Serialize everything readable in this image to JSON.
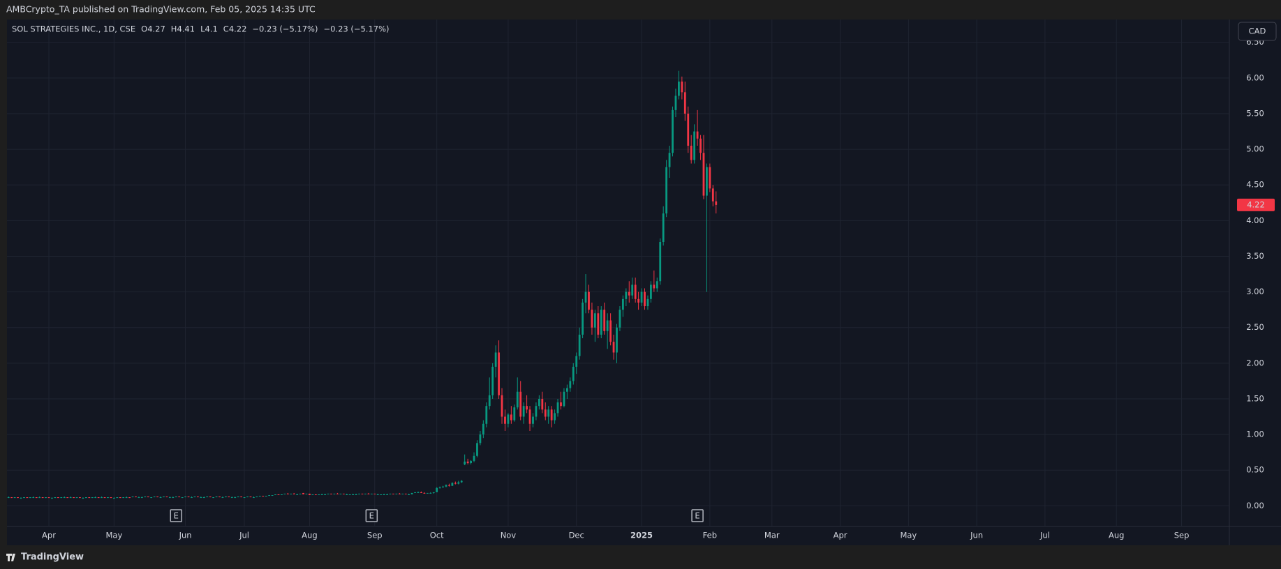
{
  "header": {
    "publisher": "AMBCrypto_TA published on TradingView.com, Feb 05, 2025 14:35 UTC"
  },
  "footer": {
    "brand": "TradingView"
  },
  "currency_button": "CAD",
  "chart_data": {
    "type": "candlestick",
    "title": "SOL STRATEGIES INC., 1D, CSE",
    "ohlc_labels": [
      "O",
      "H",
      "L",
      "C"
    ],
    "change_label": "−0.23 (−5.17%)",
    "up_color": "#089981",
    "down_color": "#f23645",
    "grid": true,
    "xlim": [
      -0.5,
      393.4
    ],
    "xticks": [
      {
        "value": 13,
        "label": "Apr"
      },
      {
        "value": 34,
        "label": "May"
      },
      {
        "value": 57,
        "label": "Jun"
      },
      {
        "value": 76,
        "label": "Jul"
      },
      {
        "value": 97,
        "label": "Aug"
      },
      {
        "value": 118,
        "label": "Sep"
      },
      {
        "value": 138,
        "label": "Oct"
      },
      {
        "value": 161,
        "label": "Nov"
      },
      {
        "value": 183,
        "label": "Dec"
      },
      {
        "value": 204,
        "label": "2025"
      },
      {
        "value": 226,
        "label": "Feb"
      },
      {
        "value": 246,
        "label": "Mar"
      },
      {
        "value": 268,
        "label": "Apr"
      },
      {
        "value": 290,
        "label": "May"
      },
      {
        "value": 312,
        "label": "Jun"
      },
      {
        "value": 334,
        "label": "Jul"
      },
      {
        "value": 357,
        "label": "Aug"
      },
      {
        "value": 378,
        "label": "Sep"
      }
    ],
    "ylim": [
      -0.29,
      6.82
    ],
    "yticks": [
      {
        "value": 0,
        "label": "0.00"
      },
      {
        "value": 0.5,
        "label": "0.50"
      },
      {
        "value": 1,
        "label": "1.00"
      },
      {
        "value": 1.5,
        "label": "1.50"
      },
      {
        "value": 2,
        "label": "2.00"
      },
      {
        "value": 2.5,
        "label": "2.50"
      },
      {
        "value": 3,
        "label": "3.00"
      },
      {
        "value": 3.5,
        "label": "3.50"
      },
      {
        "value": 4,
        "label": "4.00"
      },
      {
        "value": 4.5,
        "label": "4.50"
      },
      {
        "value": 5,
        "label": "5.00"
      },
      {
        "value": 5.5,
        "label": "5.50"
      },
      {
        "value": 6,
        "label": "6.00"
      },
      {
        "value": 6.5,
        "label": "6.50"
      }
    ],
    "events": [
      {
        "x": 54,
        "label": "E"
      },
      {
        "x": 117,
        "label": "E"
      },
      {
        "x": 222,
        "label": "E"
      }
    ],
    "ohlc": [
      [
        0.12,
        0.13,
        0.11,
        0.12
      ],
      [
        0.12,
        0.12,
        0.11,
        0.11
      ],
      [
        0.11,
        0.12,
        0.11,
        0.12
      ],
      [
        0.12,
        0.12,
        0.11,
        0.11
      ],
      [
        0.11,
        0.12,
        0.1,
        0.11
      ],
      [
        0.11,
        0.12,
        0.11,
        0.12
      ],
      [
        0.12,
        0.12,
        0.11,
        0.11
      ],
      [
        0.11,
        0.12,
        0.11,
        0.12
      ],
      [
        0.12,
        0.13,
        0.11,
        0.12
      ],
      [
        0.12,
        0.12,
        0.11,
        0.11
      ],
      [
        0.12,
        0.13,
        0.11,
        0.12
      ],
      [
        0.12,
        0.12,
        0.11,
        0.11
      ],
      [
        0.11,
        0.12,
        0.11,
        0.12
      ],
      [
        0.12,
        0.12,
        0.11,
        0.11
      ],
      [
        0.11,
        0.12,
        0.1,
        0.11
      ],
      [
        0.11,
        0.12,
        0.11,
        0.12
      ],
      [
        0.12,
        0.12,
        0.11,
        0.11
      ],
      [
        0.11,
        0.12,
        0.11,
        0.12
      ],
      [
        0.12,
        0.13,
        0.11,
        0.12
      ],
      [
        0.12,
        0.12,
        0.11,
        0.11
      ],
      [
        0.12,
        0.13,
        0.11,
        0.12
      ],
      [
        0.12,
        0.12,
        0.11,
        0.11
      ],
      [
        0.11,
        0.12,
        0.11,
        0.12
      ],
      [
        0.12,
        0.12,
        0.11,
        0.11
      ],
      [
        0.11,
        0.12,
        0.1,
        0.11
      ],
      [
        0.11,
        0.12,
        0.11,
        0.12
      ],
      [
        0.12,
        0.12,
        0.11,
        0.11
      ],
      [
        0.11,
        0.12,
        0.11,
        0.12
      ],
      [
        0.12,
        0.13,
        0.11,
        0.12
      ],
      [
        0.12,
        0.12,
        0.11,
        0.11
      ],
      [
        0.12,
        0.13,
        0.11,
        0.12
      ],
      [
        0.12,
        0.12,
        0.11,
        0.11
      ],
      [
        0.11,
        0.12,
        0.11,
        0.12
      ],
      [
        0.12,
        0.12,
        0.11,
        0.11
      ],
      [
        0.11,
        0.12,
        0.1,
        0.11
      ],
      [
        0.11,
        0.12,
        0.11,
        0.12
      ],
      [
        0.12,
        0.12,
        0.11,
        0.11
      ],
      [
        0.11,
        0.12,
        0.11,
        0.12
      ],
      [
        0.12,
        0.13,
        0.11,
        0.12
      ],
      [
        0.12,
        0.12,
        0.11,
        0.11
      ],
      [
        0.12,
        0.13,
        0.12,
        0.13
      ],
      [
        0.13,
        0.13,
        0.12,
        0.12
      ],
      [
        0.12,
        0.13,
        0.12,
        0.12
      ],
      [
        0.12,
        0.13,
        0.11,
        0.12
      ],
      [
        0.12,
        0.13,
        0.12,
        0.13
      ],
      [
        0.13,
        0.13,
        0.12,
        0.12
      ],
      [
        0.12,
        0.12,
        0.11,
        0.12
      ],
      [
        0.12,
        0.13,
        0.12,
        0.13
      ],
      [
        0.13,
        0.13,
        0.12,
        0.12
      ],
      [
        0.12,
        0.13,
        0.12,
        0.12
      ],
      [
        0.12,
        0.13,
        0.12,
        0.13
      ],
      [
        0.13,
        0.13,
        0.12,
        0.12
      ],
      [
        0.12,
        0.13,
        0.12,
        0.12
      ],
      [
        0.12,
        0.13,
        0.11,
        0.12
      ],
      [
        0.12,
        0.13,
        0.12,
        0.13
      ],
      [
        0.13,
        0.13,
        0.12,
        0.12
      ],
      [
        0.12,
        0.12,
        0.11,
        0.12
      ],
      [
        0.12,
        0.13,
        0.12,
        0.13
      ],
      [
        0.13,
        0.13,
        0.12,
        0.12
      ],
      [
        0.12,
        0.13,
        0.12,
        0.12
      ],
      [
        0.12,
        0.13,
        0.12,
        0.13
      ],
      [
        0.13,
        0.13,
        0.12,
        0.12
      ],
      [
        0.12,
        0.13,
        0.12,
        0.12
      ],
      [
        0.12,
        0.13,
        0.11,
        0.12
      ],
      [
        0.12,
        0.13,
        0.12,
        0.13
      ],
      [
        0.13,
        0.13,
        0.12,
        0.12
      ],
      [
        0.12,
        0.12,
        0.11,
        0.12
      ],
      [
        0.12,
        0.13,
        0.12,
        0.13
      ],
      [
        0.13,
        0.13,
        0.12,
        0.12
      ],
      [
        0.12,
        0.13,
        0.12,
        0.12
      ],
      [
        0.12,
        0.13,
        0.12,
        0.13
      ],
      [
        0.13,
        0.13,
        0.12,
        0.12
      ],
      [
        0.12,
        0.13,
        0.12,
        0.12
      ],
      [
        0.12,
        0.13,
        0.11,
        0.12
      ],
      [
        0.12,
        0.13,
        0.12,
        0.13
      ],
      [
        0.13,
        0.13,
        0.12,
        0.12
      ],
      [
        0.12,
        0.12,
        0.11,
        0.12
      ],
      [
        0.12,
        0.13,
        0.12,
        0.13
      ],
      [
        0.13,
        0.13,
        0.12,
        0.12
      ],
      [
        0.12,
        0.13,
        0.12,
        0.12
      ],
      [
        0.12,
        0.13,
        0.12,
        0.13
      ],
      [
        0.13,
        0.14,
        0.13,
        0.14
      ],
      [
        0.14,
        0.14,
        0.13,
        0.13
      ],
      [
        0.13,
        0.14,
        0.13,
        0.14
      ],
      [
        0.14,
        0.15,
        0.14,
        0.15
      ],
      [
        0.15,
        0.15,
        0.14,
        0.15
      ],
      [
        0.15,
        0.16,
        0.15,
        0.16
      ],
      [
        0.16,
        0.16,
        0.15,
        0.15
      ],
      [
        0.15,
        0.16,
        0.15,
        0.16
      ],
      [
        0.16,
        0.17,
        0.16,
        0.17
      ],
      [
        0.17,
        0.18,
        0.16,
        0.16
      ],
      [
        0.16,
        0.17,
        0.16,
        0.17
      ],
      [
        0.17,
        0.18,
        0.16,
        0.16
      ],
      [
        0.16,
        0.17,
        0.15,
        0.16
      ],
      [
        0.16,
        0.17,
        0.16,
        0.17
      ],
      [
        0.18,
        0.18,
        0.16,
        0.16
      ],
      [
        0.16,
        0.17,
        0.16,
        0.17
      ],
      [
        0.17,
        0.17,
        0.15,
        0.15
      ],
      [
        0.15,
        0.16,
        0.15,
        0.16
      ],
      [
        0.16,
        0.16,
        0.15,
        0.15
      ],
      [
        0.15,
        0.16,
        0.15,
        0.16
      ],
      [
        0.16,
        0.17,
        0.16,
        0.16
      ],
      [
        0.16,
        0.17,
        0.15,
        0.16
      ],
      [
        0.16,
        0.17,
        0.16,
        0.17
      ],
      [
        0.17,
        0.17,
        0.16,
        0.16
      ],
      [
        0.16,
        0.17,
        0.16,
        0.17
      ],
      [
        0.17,
        0.18,
        0.16,
        0.16
      ],
      [
        0.16,
        0.17,
        0.16,
        0.17
      ],
      [
        0.17,
        0.17,
        0.16,
        0.16
      ],
      [
        0.16,
        0.17,
        0.15,
        0.16
      ],
      [
        0.15,
        0.16,
        0.15,
        0.16
      ],
      [
        0.16,
        0.17,
        0.16,
        0.16
      ],
      [
        0.16,
        0.17,
        0.15,
        0.16
      ],
      [
        0.16,
        0.17,
        0.16,
        0.17
      ],
      [
        0.17,
        0.17,
        0.16,
        0.16
      ],
      [
        0.16,
        0.17,
        0.16,
        0.17
      ],
      [
        0.17,
        0.18,
        0.16,
        0.16
      ],
      [
        0.16,
        0.17,
        0.16,
        0.17
      ],
      [
        0.17,
        0.17,
        0.16,
        0.16
      ],
      [
        0.16,
        0.17,
        0.15,
        0.16
      ],
      [
        0.15,
        0.16,
        0.15,
        0.16
      ],
      [
        0.16,
        0.17,
        0.16,
        0.16
      ],
      [
        0.16,
        0.17,
        0.15,
        0.16
      ],
      [
        0.16,
        0.17,
        0.16,
        0.17
      ],
      [
        0.17,
        0.17,
        0.16,
        0.16
      ],
      [
        0.16,
        0.17,
        0.16,
        0.17
      ],
      [
        0.17,
        0.18,
        0.16,
        0.16
      ],
      [
        0.16,
        0.17,
        0.16,
        0.17
      ],
      [
        0.17,
        0.17,
        0.16,
        0.16
      ],
      [
        0.16,
        0.17,
        0.15,
        0.16
      ],
      [
        0.16,
        0.18,
        0.16,
        0.18
      ],
      [
        0.18,
        0.19,
        0.18,
        0.19
      ],
      [
        0.19,
        0.2,
        0.18,
        0.19
      ],
      [
        0.19,
        0.2,
        0.18,
        0.18
      ],
      [
        0.18,
        0.19,
        0.17,
        0.17
      ],
      [
        0.17,
        0.18,
        0.17,
        0.18
      ],
      [
        0.18,
        0.19,
        0.17,
        0.18
      ],
      [
        0.18,
        0.19,
        0.17,
        0.19
      ],
      [
        0.19,
        0.26,
        0.19,
        0.25
      ],
      [
        0.25,
        0.27,
        0.24,
        0.26
      ],
      [
        0.26,
        0.28,
        0.25,
        0.27
      ],
      [
        0.27,
        0.3,
        0.26,
        0.29
      ],
      [
        0.29,
        0.31,
        0.27,
        0.28
      ],
      [
        0.28,
        0.33,
        0.28,
        0.32
      ],
      [
        0.32,
        0.34,
        0.3,
        0.31
      ],
      [
        0.31,
        0.35,
        0.3,
        0.33
      ],
      [
        0.33,
        0.36,
        0.32,
        0.35
      ],
      [
        0.58,
        0.72,
        0.57,
        0.62
      ],
      [
        0.62,
        0.66,
        0.58,
        0.6
      ],
      [
        0.6,
        0.64,
        0.58,
        0.63
      ],
      [
        0.63,
        0.75,
        0.61,
        0.7
      ],
      [
        0.7,
        0.92,
        0.68,
        0.88
      ],
      [
        0.88,
        1.05,
        0.85,
        1.0
      ],
      [
        1.0,
        1.2,
        0.95,
        1.15
      ],
      [
        1.15,
        1.45,
        1.1,
        1.4
      ],
      [
        1.4,
        1.8,
        1.35,
        1.55
      ],
      [
        1.55,
        2.0,
        1.5,
        1.95
      ],
      [
        1.95,
        2.25,
        1.8,
        2.15
      ],
      [
        2.15,
        2.32,
        1.5,
        1.55
      ],
      [
        1.55,
        1.65,
        1.15,
        1.25
      ],
      [
        1.25,
        1.35,
        1.05,
        1.15
      ],
      [
        1.15,
        1.3,
        1.1,
        1.28
      ],
      [
        1.28,
        1.4,
        1.15,
        1.2
      ],
      [
        1.2,
        1.42,
        1.18,
        1.38
      ],
      [
        1.38,
        1.8,
        1.35,
        1.6
      ],
      [
        1.6,
        1.75,
        1.2,
        1.25
      ],
      [
        1.25,
        1.45,
        1.15,
        1.4
      ],
      [
        1.4,
        1.55,
        1.3,
        1.35
      ],
      [
        1.35,
        1.4,
        1.05,
        1.15
      ],
      [
        1.15,
        1.3,
        1.1,
        1.25
      ],
      [
        1.25,
        1.45,
        1.2,
        1.4
      ],
      [
        1.4,
        1.55,
        1.35,
        1.5
      ],
      [
        1.5,
        1.6,
        1.3,
        1.35
      ],
      [
        1.35,
        1.45,
        1.2,
        1.25
      ],
      [
        1.25,
        1.4,
        1.15,
        1.35
      ],
      [
        1.35,
        1.4,
        1.1,
        1.2
      ],
      [
        1.2,
        1.35,
        1.15,
        1.3
      ],
      [
        1.3,
        1.5,
        1.25,
        1.45
      ],
      [
        1.45,
        1.6,
        1.35,
        1.4
      ],
      [
        1.4,
        1.65,
        1.38,
        1.6
      ],
      [
        1.6,
        1.7,
        1.5,
        1.65
      ],
      [
        1.65,
        1.8,
        1.6,
        1.75
      ],
      [
        1.75,
        2.0,
        1.7,
        1.95
      ],
      [
        1.95,
        2.15,
        1.85,
        2.1
      ],
      [
        2.1,
        2.5,
        2.05,
        2.4
      ],
      [
        2.4,
        2.9,
        2.35,
        2.85
      ],
      [
        2.85,
        3.25,
        2.7,
        3.0
      ],
      [
        3.0,
        3.1,
        2.7,
        2.75
      ],
      [
        2.75,
        2.85,
        2.4,
        2.5
      ],
      [
        2.5,
        2.75,
        2.3,
        2.7
      ],
      [
        2.7,
        2.8,
        2.35,
        2.4
      ],
      [
        2.4,
        2.8,
        2.35,
        2.75
      ],
      [
        2.75,
        2.85,
        2.4,
        2.45
      ],
      [
        2.45,
        2.7,
        2.2,
        2.6
      ],
      [
        2.6,
        2.7,
        2.25,
        2.3
      ],
      [
        2.3,
        2.4,
        2.05,
        2.15
      ],
      [
        2.15,
        2.55,
        2.0,
        2.5
      ],
      [
        2.5,
        2.8,
        2.45,
        2.75
      ],
      [
        2.75,
        2.95,
        2.65,
        2.9
      ],
      [
        2.9,
        3.05,
        2.8,
        3.0
      ],
      [
        3.0,
        3.15,
        2.85,
        2.95
      ],
      [
        2.95,
        3.2,
        2.9,
        3.1
      ],
      [
        3.1,
        3.2,
        2.85,
        2.9
      ],
      [
        2.9,
        3.0,
        2.75,
        2.85
      ],
      [
        2.85,
        3.05,
        2.8,
        3.0
      ],
      [
        3.0,
        3.05,
        2.75,
        2.8
      ],
      [
        2.8,
        2.95,
        2.75,
        2.9
      ],
      [
        2.9,
        3.15,
        2.85,
        3.1
      ],
      [
        3.1,
        3.3,
        3.0,
        3.05
      ],
      [
        3.05,
        3.2,
        3.0,
        3.15
      ],
      [
        3.15,
        3.75,
        3.1,
        3.7
      ],
      [
        3.7,
        4.2,
        3.65,
        4.1
      ],
      [
        4.1,
        4.85,
        4.05,
        4.75
      ],
      [
        4.75,
        5.05,
        4.6,
        4.95
      ],
      [
        4.95,
        5.6,
        4.9,
        5.55
      ],
      [
        5.55,
        5.85,
        5.45,
        5.75
      ],
      [
        5.75,
        6.1,
        5.7,
        5.95
      ],
      [
        5.95,
        6.02,
        5.7,
        5.8
      ],
      [
        5.8,
        5.95,
        5.4,
        5.5
      ],
      [
        5.5,
        5.6,
        4.95,
        5.05
      ],
      [
        5.05,
        5.2,
        4.8,
        4.85
      ],
      [
        4.85,
        5.35,
        4.8,
        5.25
      ],
      [
        5.25,
        5.55,
        5.05,
        5.15
      ],
      [
        5.15,
        5.2,
        4.85,
        4.95
      ],
      [
        4.95,
        5.2,
        4.3,
        4.35
      ],
      [
        4.35,
        4.8,
        3.0,
        4.75
      ],
      [
        4.75,
        4.8,
        4.4,
        4.45
      ],
      [
        4.45,
        4.5,
        4.2,
        4.27
      ],
      [
        4.27,
        4.41,
        4.1,
        4.22
      ]
    ]
  }
}
